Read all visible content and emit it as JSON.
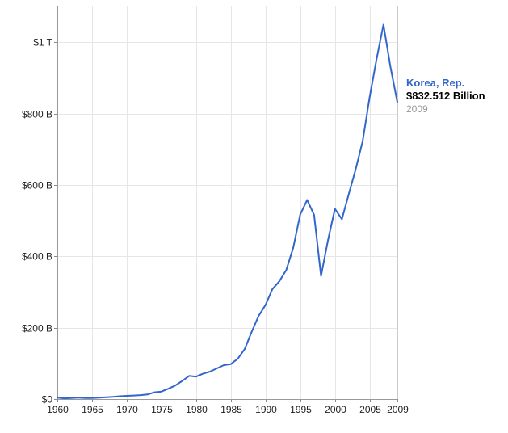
{
  "chart_data": {
    "type": "line",
    "title": "",
    "xlabel": "",
    "ylabel": "",
    "xlim": [
      1960,
      2009
    ],
    "ylim": [
      0,
      1100
    ],
    "x_ticks": [
      1960,
      1965,
      1970,
      1975,
      1980,
      1985,
      1990,
      1995,
      2000,
      2005,
      2009
    ],
    "y_ticks": [
      {
        "value": 0,
        "label": "$0"
      },
      {
        "value": 200,
        "label": "$200 B"
      },
      {
        "value": 400,
        "label": "$400 B"
      },
      {
        "value": 600,
        "label": "$600 B"
      },
      {
        "value": 800,
        "label": "$800 B"
      },
      {
        "value": 1000,
        "label": "$1 T"
      }
    ],
    "grid": true,
    "series": [
      {
        "name": "Korea, Rep.",
        "color": "#3366cc",
        "x": [
          1960,
          1961,
          1962,
          1963,
          1964,
          1965,
          1966,
          1967,
          1968,
          1969,
          1970,
          1971,
          1972,
          1973,
          1974,
          1975,
          1976,
          1977,
          1978,
          1979,
          1980,
          1981,
          1982,
          1983,
          1984,
          1985,
          1986,
          1987,
          1988,
          1989,
          1990,
          1991,
          1992,
          1993,
          1994,
          1995,
          1996,
          1997,
          1998,
          1999,
          2000,
          2001,
          2002,
          2003,
          2004,
          2005,
          2006,
          2007,
          2008,
          2009
        ],
        "y": [
          4,
          2,
          3,
          4,
          3,
          3,
          4,
          5,
          6,
          8,
          9,
          10,
          11,
          13,
          19,
          21,
          29,
          38,
          51,
          65,
          63,
          71,
          77,
          86,
          95,
          98,
          113,
          140,
          188,
          233,
          264,
          308,
          330,
          362,
          424,
          517,
          558,
          516,
          345,
          445,
          533,
          504,
          575,
          644,
          722,
          845,
          952,
          1049,
          931,
          832
        ]
      }
    ]
  },
  "legend": {
    "name": "Korea, Rep.",
    "value": "$832.512 Billion",
    "year": "2009"
  }
}
